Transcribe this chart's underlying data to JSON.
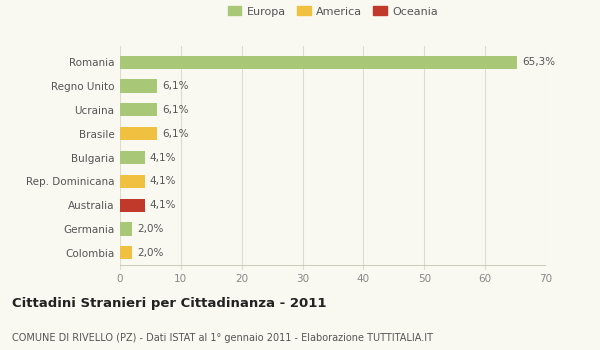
{
  "categories": [
    "Colombia",
    "Germania",
    "Australia",
    "Rep. Dominicana",
    "Bulgaria",
    "Brasile",
    "Ucraina",
    "Regno Unito",
    "Romania"
  ],
  "values": [
    2.0,
    2.0,
    4.1,
    4.1,
    4.1,
    6.1,
    6.1,
    6.1,
    65.3
  ],
  "labels": [
    "2,0%",
    "2,0%",
    "4,1%",
    "4,1%",
    "4,1%",
    "6,1%",
    "6,1%",
    "6,1%",
    "65,3%"
  ],
  "colors": [
    "#f0c040",
    "#a8c878",
    "#c0392b",
    "#f0c040",
    "#a8c878",
    "#f0c040",
    "#a8c878",
    "#a8c878",
    "#a8c878"
  ],
  "legend_items": [
    {
      "label": "Europa",
      "color": "#a8c878"
    },
    {
      "label": "America",
      "color": "#f0c040"
    },
    {
      "label": "Oceania",
      "color": "#c0392b"
    }
  ],
  "xlim": [
    0,
    70
  ],
  "xticks": [
    0,
    10,
    20,
    30,
    40,
    50,
    60,
    70
  ],
  "title": "Cittadini Stranieri per Cittadinanza - 2011",
  "subtitle": "COMUNE DI RIVELLO (PZ) - Dati ISTAT al 1° gennaio 2011 - Elaborazione TUTTITALIA.IT",
  "background_color": "#f9f9f2",
  "grid_color": "#ddddcc",
  "bar_height": 0.55,
  "label_fontsize": 7.5,
  "title_fontsize": 9.5,
  "subtitle_fontsize": 7.0,
  "ytick_fontsize": 7.5,
  "xtick_fontsize": 7.5
}
